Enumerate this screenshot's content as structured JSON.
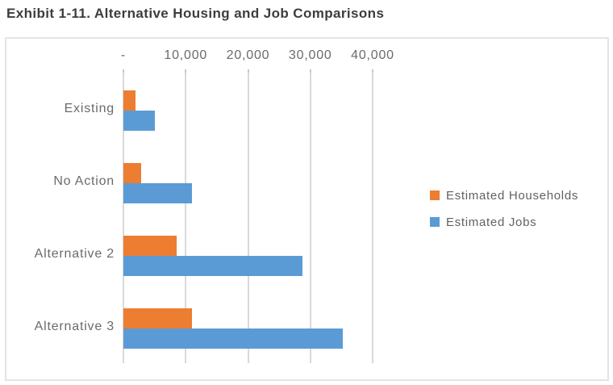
{
  "title": "Exhibit 1-11. Alternative Housing and Job Comparisons",
  "chart_data": {
    "type": "bar",
    "orientation": "horizontal",
    "title": "Exhibit 1-11. Alternative Housing and Job Comparisons",
    "categories": [
      "Existing",
      "No Action",
      "Alternative 2",
      "Alternative 3"
    ],
    "series": [
      {
        "name": "Estimated Households",
        "color": "#ED7D31",
        "values": [
          2000,
          2800,
          8500,
          11000
        ]
      },
      {
        "name": "Estimated Jobs",
        "color": "#5B9BD5",
        "values": [
          5000,
          11000,
          28700,
          35200
        ]
      }
    ],
    "x_axis": {
      "position": "top",
      "min": 0,
      "max": 40000,
      "tick_values": [
        0,
        10000,
        20000,
        30000,
        40000
      ],
      "tick_labels": [
        "-",
        "10,000",
        "20,000",
        "30,000",
        "40,000"
      ]
    },
    "legend": {
      "position": "right",
      "entries": [
        "Estimated Households",
        "Estimated Jobs"
      ]
    },
    "grid": true,
    "colors": {
      "households": "#ED7D31",
      "jobs": "#5B9BD5",
      "gridline": "#D9D9D9",
      "axis_text": "#6B6B6B",
      "title_text": "#3D3D3D",
      "chart_border": "#E4E4E4"
    }
  }
}
